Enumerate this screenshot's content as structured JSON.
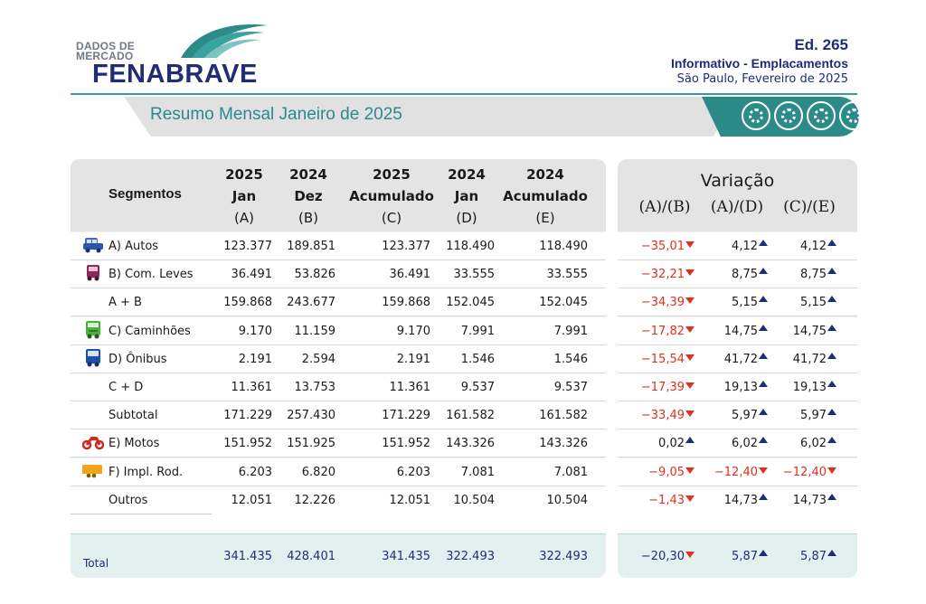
{
  "header": {
    "logo_small_line1": "DADOS DE",
    "logo_small_line2": "MERCADO",
    "logo_brand": "FENABRAVE",
    "edition": "Ed. 265",
    "subtitle": "Informativo - Emplacamentos",
    "place_date": "São Paulo, Fevereiro de 2025",
    "banner_title": "Resumo Mensal Janeiro de 2025"
  },
  "colors": {
    "brand_navy": "#1f2d78",
    "brand_teal": "#2c8a88",
    "negative": "#e0301e"
  },
  "table": {
    "segments_header": "Segmentos",
    "columns": [
      {
        "l1": "2025",
        "l2": "Jan",
        "l3": "(A)"
      },
      {
        "l1": "2024",
        "l2": "Dez",
        "l3": "(B)"
      },
      {
        "l1": "2025",
        "l2": "Acumulado",
        "l3": "(C)"
      },
      {
        "l1": "2024",
        "l2": "Jan",
        "l3": "(D)"
      },
      {
        "l1": "2024",
        "l2": "Acumulado",
        "l3": "(E)"
      }
    ],
    "variation_title": "Variação",
    "variation_cols": [
      "(A)/(B)",
      "(A)/(D)",
      "(C)/(E)"
    ],
    "rows": [
      {
        "label": "A) Autos",
        "icon": "car-icon",
        "values": [
          "123.377",
          "189.851",
          "123.377",
          "118.490",
          "118.490"
        ],
        "var": [
          "-35,01",
          "4,12",
          "4,12"
        ],
        "dir": [
          "down",
          "up",
          "up"
        ]
      },
      {
        "label": "B) Com. Leves",
        "icon": "van-icon",
        "values": [
          "36.491",
          "53.826",
          "36.491",
          "33.555",
          "33.555"
        ],
        "var": [
          "-32,21",
          "8,75",
          "8,75"
        ],
        "dir": [
          "down",
          "up",
          "up"
        ]
      },
      {
        "label": "A + B",
        "icon": "",
        "values": [
          "159.868",
          "243.677",
          "159.868",
          "152.045",
          "152.045"
        ],
        "var": [
          "-34,39",
          "5,15",
          "5,15"
        ],
        "dir": [
          "down",
          "up",
          "up"
        ]
      },
      {
        "label": "C) Caminhões",
        "icon": "truck-icon",
        "values": [
          "9.170",
          "11.159",
          "9.170",
          "7.991",
          "7.991"
        ],
        "var": [
          "-17,82",
          "14,75",
          "14,75"
        ],
        "dir": [
          "down",
          "up",
          "up"
        ]
      },
      {
        "label": "D) Ônibus",
        "icon": "bus-icon",
        "values": [
          "2.191",
          "2.594",
          "2.191",
          "1.546",
          "1.546"
        ],
        "var": [
          "-15,54",
          "41,72",
          "41,72"
        ],
        "dir": [
          "down",
          "up",
          "up"
        ]
      },
      {
        "label": "C + D",
        "icon": "",
        "values": [
          "11.361",
          "13.753",
          "11.361",
          "9.537",
          "9.537"
        ],
        "var": [
          "-17,39",
          "19,13",
          "19,13"
        ],
        "dir": [
          "down",
          "up",
          "up"
        ]
      },
      {
        "label": "Subtotal",
        "icon": "",
        "values": [
          "171.229",
          "257.430",
          "171.229",
          "161.582",
          "161.582"
        ],
        "var": [
          "-33,49",
          "5,97",
          "5,97"
        ],
        "dir": [
          "down",
          "up",
          "up"
        ]
      },
      {
        "label": "E) Motos",
        "icon": "motorcycle-icon",
        "values": [
          "151.952",
          "151.925",
          "151.952",
          "143.326",
          "143.326"
        ],
        "var": [
          "0,02",
          "6,02",
          "6,02"
        ],
        "dir": [
          "up",
          "up",
          "up"
        ]
      },
      {
        "label": "F) Impl. Rod.",
        "icon": "trailer-icon",
        "values": [
          "6.203",
          "6.820",
          "6.203",
          "7.081",
          "7.081"
        ],
        "var": [
          "-9,05",
          "-12,40",
          "-12,40"
        ],
        "dir": [
          "down",
          "down",
          "down"
        ]
      },
      {
        "label": "Outros",
        "icon": "",
        "values": [
          "12.051",
          "12.226",
          "12.051",
          "10.504",
          "10.504"
        ],
        "var": [
          "-1,43",
          "14,73",
          "14,73"
        ],
        "dir": [
          "down",
          "up",
          "up"
        ]
      }
    ],
    "total": {
      "label": "Total",
      "values": [
        "341.435",
        "428.401",
        "341.435",
        "322.493",
        "322.493"
      ],
      "var": [
        "-20,30",
        "5,87",
        "5,87"
      ],
      "dir": [
        "down",
        "up",
        "up"
      ]
    }
  }
}
